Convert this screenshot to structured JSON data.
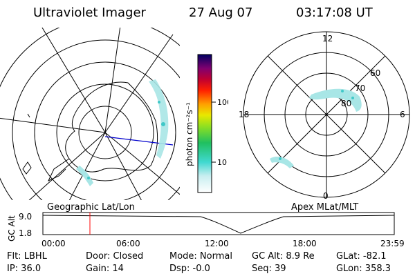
{
  "header": {
    "instrument": "Ultraviolet Imager",
    "date": "27 Aug 07",
    "time": "03:17:08 UT"
  },
  "left_panel": {
    "label": "Geographic Lat/Lon"
  },
  "right_panel": {
    "label": "Apex MLat/MLT",
    "mlt_labels": {
      "top": "12",
      "left": "18",
      "right": "6",
      "bottom": "0"
    },
    "lat_labels": [
      "60",
      "70",
      "80"
    ]
  },
  "colorbar": {
    "unit_label": "photon cm⁻²s⁻¹",
    "tick_labels": [
      "100",
      "10"
    ]
  },
  "altitude_plot": {
    "axis_label": "GC Alt",
    "y_ticks": [
      "9.0",
      "1.8"
    ],
    "x_ticks": [
      "00:00",
      "06:00",
      "12:00",
      "18:00",
      "23:59"
    ],
    "marker_color": "#ff0000"
  },
  "status": {
    "flt": "Flt: LBHL",
    "ip": "IP: 36.0",
    "door": "Door: Closed",
    "gain": "Gain: 14",
    "mode": "Mode: Normal",
    "dsp": "Dsp:   -0.0",
    "gc_alt": "GC Alt: 8.9 Re",
    "seq": "Seq: 39",
    "glat": "GLat: -82.1",
    "glon": "GLon: 358.3"
  },
  "colors": {
    "aurora": "#a8e6e6",
    "aurora_dark": "#40c8c8",
    "track_line": "#0000cc"
  }
}
